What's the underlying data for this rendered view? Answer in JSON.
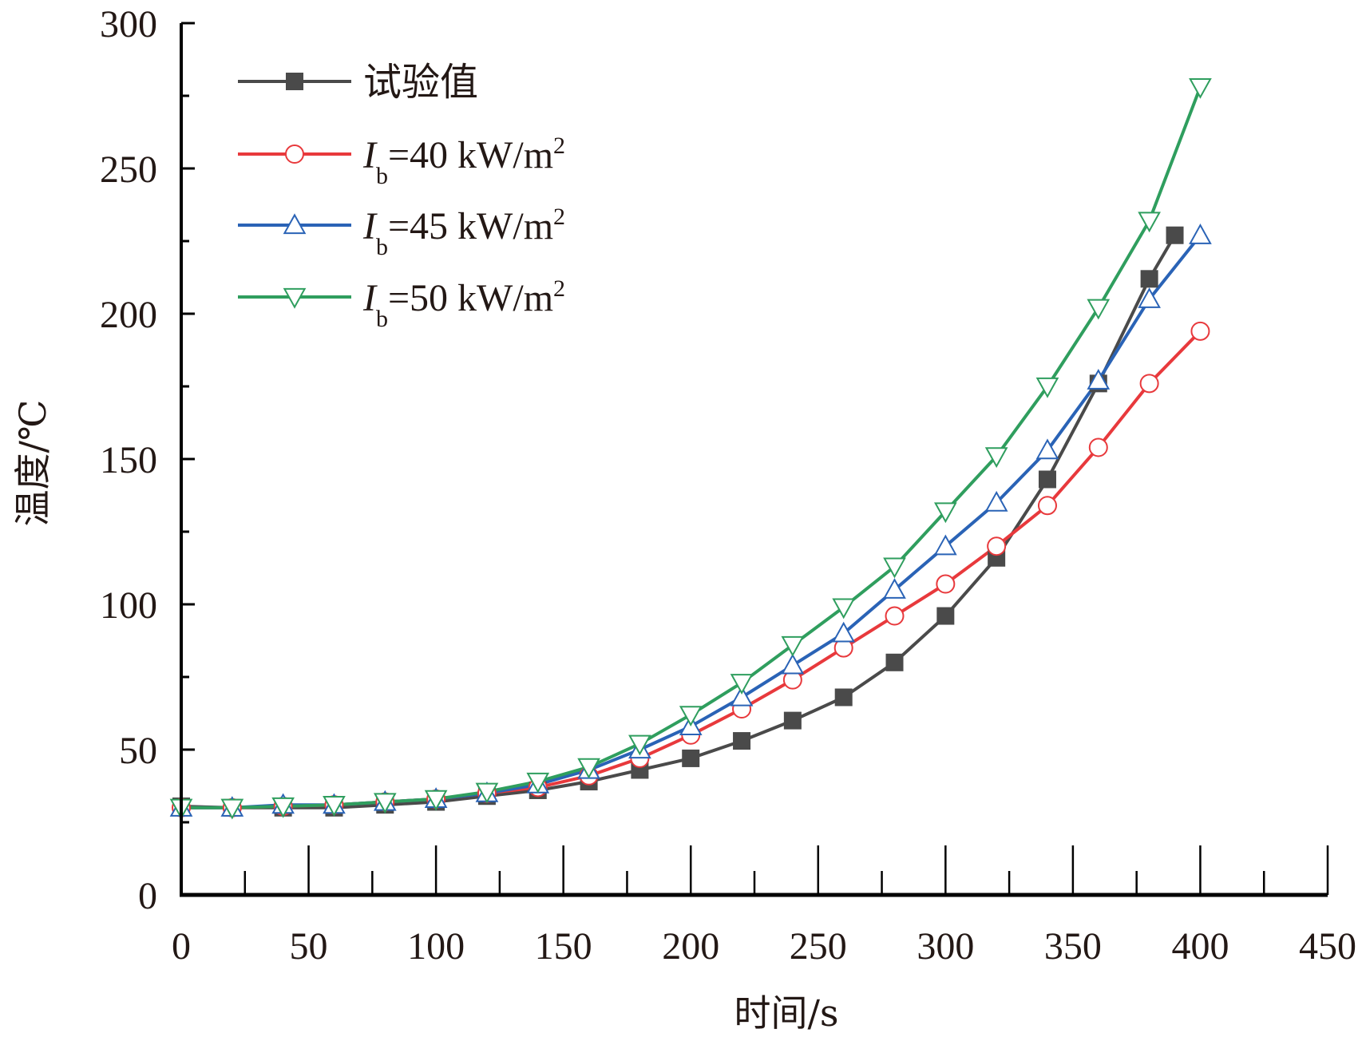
{
  "chart_data": {
    "type": "line",
    "title": "",
    "xlabel": "时间/s",
    "ylabel": "温度/℃",
    "xlim": [
      0,
      450
    ],
    "ylim": [
      0,
      300
    ],
    "xticks": [
      0,
      50,
      100,
      150,
      200,
      250,
      300,
      350,
      400,
      450
    ],
    "yticks": [
      0,
      50,
      100,
      150,
      200,
      250,
      300
    ],
    "xtick_labels": [
      "0",
      "50",
      "100",
      "150",
      "200",
      "250",
      "300",
      "350",
      "400",
      "450"
    ],
    "ytick_labels": [
      "0",
      "50",
      "100",
      "150",
      "200",
      "250",
      "300"
    ],
    "grid": false,
    "legend_position": "top-left",
    "series": [
      {
        "name": "试验值",
        "legend_main": "试验值",
        "legend_sub": "",
        "legend_rest": "",
        "legend_sup": "",
        "color": "#4a4a4a",
        "marker": "filled-square",
        "x": [
          0,
          20,
          40,
          60,
          80,
          100,
          120,
          140,
          160,
          180,
          200,
          220,
          240,
          260,
          280,
          300,
          320,
          340,
          360,
          380,
          390
        ],
        "values": [
          30.5,
          30,
          30,
          30,
          31,
          32,
          34,
          36,
          39,
          43,
          47,
          53,
          60,
          68,
          80,
          96,
          116,
          143,
          176,
          212,
          227
        ]
      },
      {
        "name": "Ib=40 kW/m2",
        "legend_main": "I",
        "legend_sub": "b",
        "legend_rest": "=40 kW/m",
        "legend_sup": "2",
        "color": "#e8393c",
        "marker": "open-circle",
        "x": [
          0,
          20,
          40,
          60,
          80,
          100,
          120,
          140,
          160,
          180,
          200,
          220,
          240,
          260,
          280,
          300,
          320,
          340,
          360,
          380,
          400
        ],
        "values": [
          30,
          30,
          30.5,
          31,
          32,
          33,
          35,
          37,
          41,
          47,
          55,
          64,
          74,
          85,
          96,
          107,
          120,
          134,
          154,
          176,
          194
        ]
      },
      {
        "name": "Ib=45 kW/m2",
        "legend_main": "I",
        "legend_sub": "b",
        "legend_rest": "=45 kW/m",
        "legend_sup": "2",
        "color": "#2a63b6",
        "marker": "open-triangle-up",
        "x": [
          0,
          20,
          40,
          60,
          80,
          100,
          120,
          140,
          160,
          180,
          200,
          220,
          240,
          260,
          280,
          300,
          320,
          340,
          360,
          380,
          400
        ],
        "values": [
          30,
          30,
          31,
          31,
          32,
          33,
          35,
          38,
          43,
          50,
          58,
          68,
          79,
          90,
          105,
          120,
          135,
          153,
          177,
          205,
          227
        ]
      },
      {
        "name": "Ib=50 kW/m2",
        "legend_main": "I",
        "legend_sub": "b",
        "legend_rest": "=50 kW/m",
        "legend_sup": "2",
        "color": "#2f9e5e",
        "marker": "open-triangle-down",
        "x": [
          0,
          20,
          40,
          60,
          80,
          100,
          120,
          140,
          160,
          180,
          200,
          220,
          240,
          260,
          280,
          300,
          320,
          340,
          360,
          380,
          400
        ],
        "values": [
          30,
          30,
          30.5,
          31,
          32,
          33,
          35.5,
          39,
          44,
          52,
          62,
          73,
          86,
          99,
          113,
          132,
          151,
          175,
          202,
          232,
          278
        ]
      }
    ]
  }
}
